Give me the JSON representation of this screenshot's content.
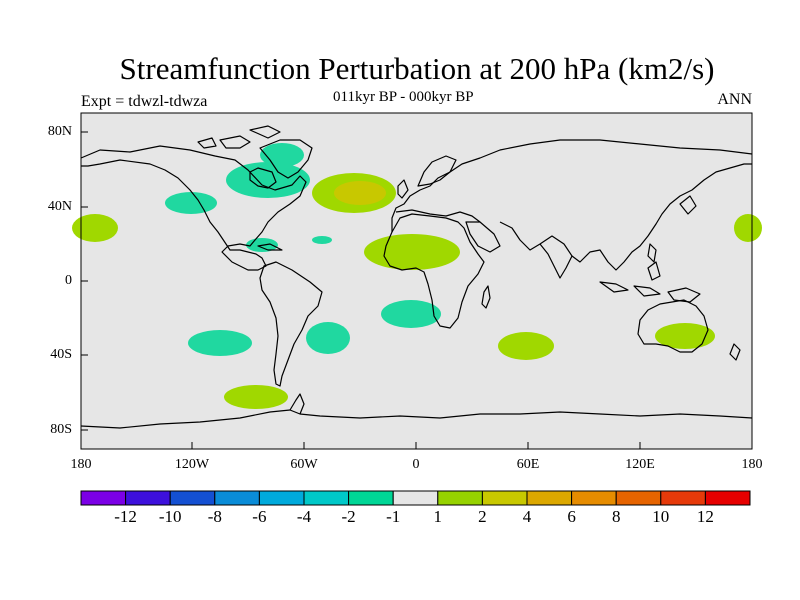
{
  "title": "Streamfunction Perturbation at 200 hPa (km2/s)",
  "subtitle": "011kyr BP - 000kyr BP",
  "left_subtitle": "Expt = tdwzl-tdwza",
  "right_subtitle": "ANN",
  "lat_labels": [
    "80N",
    "40N",
    "0",
    "40S",
    "80S"
  ],
  "lon_labels": [
    "180",
    "120W",
    "60W",
    "0",
    "60E",
    "120E",
    "180"
  ],
  "colorbar": {
    "colors": [
      "#7b00e6",
      "#3d10dc",
      "#1450d2",
      "#0a8cd8",
      "#00aadc",
      "#00c8c8",
      "#00d696",
      "#e6e6e6",
      "#96d200",
      "#c8c800",
      "#dca800",
      "#e68c00",
      "#e66400",
      "#e63a0a",
      "#e60000"
    ],
    "labels": [
      "-12",
      "-10",
      "-8",
      "-6",
      "-4",
      "-2",
      "-1",
      "1",
      "2",
      "4",
      "6",
      "8",
      "10",
      "12"
    ]
  },
  "colors": {
    "background": "#e6e6e6",
    "negative_fill": "#20d8a0",
    "positive_fill": "#a0d800",
    "positive_core": "#c8c800",
    "coast": "#000000"
  }
}
